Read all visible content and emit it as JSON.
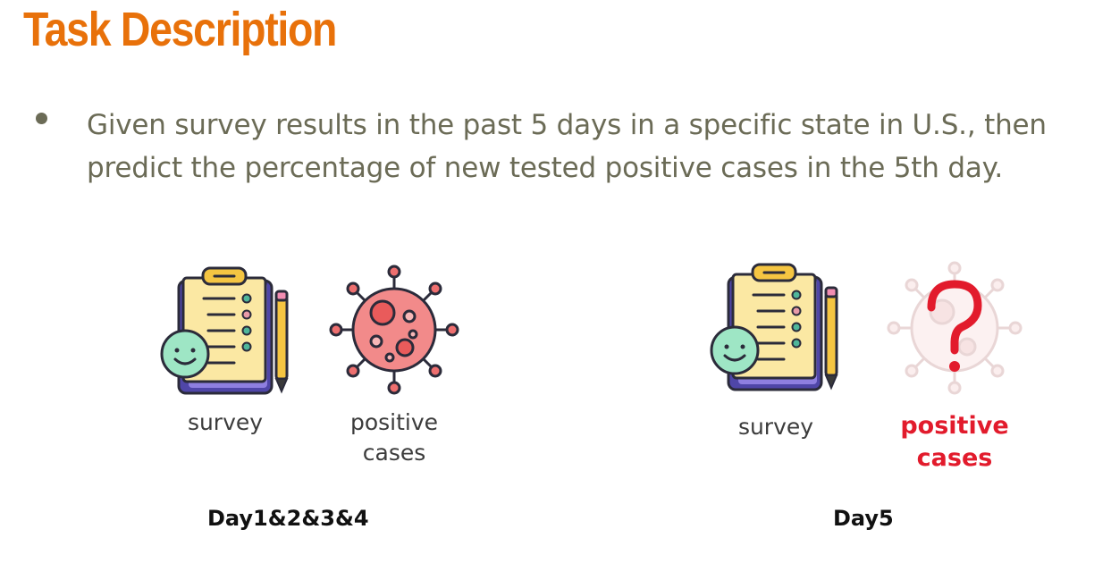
{
  "header": {
    "title": "Task Description"
  },
  "content": {
    "bullets": [
      "Given survey results in the past 5 days in a specific state in U.S., then predict the percentage of new tested positive cases in the 5th day."
    ]
  },
  "left_group": {
    "survey_label": "survey",
    "positive_label_line1": "positive",
    "positive_label_line2": "cases",
    "day_label": "Day1&2&3&4",
    "icons": [
      "clipboard-survey-icon",
      "virus-icon"
    ]
  },
  "right_group": {
    "survey_label": "survey",
    "positive_label_line1": "positive",
    "positive_label_line2": "cases",
    "day_label": "Day5",
    "icons": [
      "clipboard-survey-icon",
      "faded-virus-question-icon"
    ]
  },
  "colors": {
    "title": "#e8710a",
    "body_text": "#6b6b56",
    "highlight_red": "#e21b2c"
  }
}
